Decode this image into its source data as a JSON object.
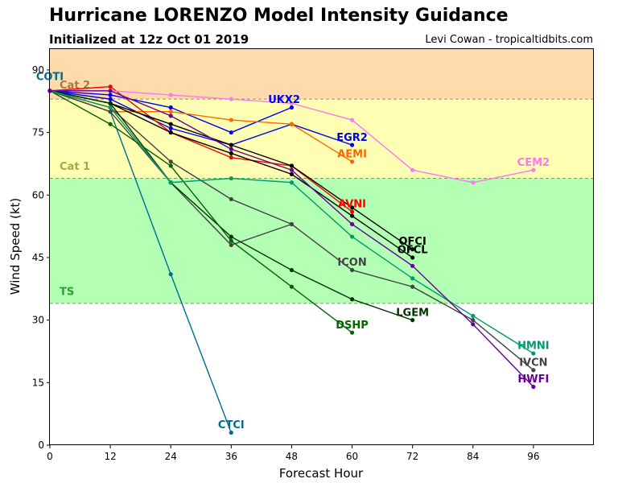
{
  "header": {
    "title": "Hurricane LORENZO Model Intensity Guidance",
    "subtitle": "Initialized at 12z Oct 01 2019",
    "credit": "Levi Cowan - tropicaltidbits.com"
  },
  "chart_data": {
    "type": "line",
    "xlabel": "Forecast Hour",
    "ylabel": "Wind Speed (kt)",
    "xlim": [
      0,
      108
    ],
    "ylim": [
      0,
      95
    ],
    "xticks": [
      0,
      12,
      24,
      36,
      48,
      60,
      72,
      84,
      96
    ],
    "yticks": [
      0,
      15,
      30,
      45,
      60,
      75,
      90
    ],
    "grid": false,
    "legend": "none",
    "bands": [
      {
        "name": "TS",
        "from": 34,
        "to": 64,
        "color": "#b3ffb3",
        "label_color": "#2ca02c",
        "label_y": 37
      },
      {
        "name": "Cat 1",
        "from": 64,
        "to": 83,
        "color": "#ffffb3",
        "label_color": "#a6a64d",
        "label_y": 67
      },
      {
        "name": "Cat 2",
        "from": 83,
        "to": 95,
        "color": "#ffdaaa",
        "label_color": "#a67a3d",
        "label_y": 86.5
      }
    ],
    "series": [
      {
        "name": "CTCI",
        "color": "#006d8f",
        "x": [
          0,
          12,
          24,
          36
        ],
        "y": [
          85,
          80,
          41,
          3
        ],
        "label_x": 36,
        "label_y": 5
      },
      {
        "name": "COTI",
        "color": "#006d8f",
        "x": [
          0
        ],
        "y": [
          85
        ],
        "label_x": 0,
        "label_y": 88.5
      },
      {
        "name": "UKX2",
        "color": "#0000ee",
        "x": [
          0,
          12,
          24,
          36,
          48
        ],
        "y": [
          85,
          84,
          81,
          75,
          81
        ],
        "label_x": 46.5,
        "label_y": 83
      },
      {
        "name": "EGR2",
        "color": "#0000ee",
        "x": [
          0,
          12,
          24,
          36,
          48,
          60
        ],
        "y": [
          85,
          83,
          76,
          72,
          77,
          72
        ],
        "label_x": 60,
        "label_y": 74
      },
      {
        "name": "AEMI",
        "color": "#ff6600",
        "x": [
          0,
          12,
          24,
          36,
          48,
          60
        ],
        "y": [
          85,
          80,
          80,
          78,
          77,
          68
        ],
        "label_x": 60,
        "label_y": 70
      },
      {
        "name": "AVNI",
        "color": "#ff0000",
        "x": [
          0,
          12,
          24,
          36,
          48,
          60
        ],
        "y": [
          85,
          86,
          75,
          69,
          67,
          56
        ],
        "label_x": 60,
        "label_y": 58
      },
      {
        "name": "CEM2",
        "color": "#ff77ee",
        "x": [
          0,
          12,
          24,
          36,
          48,
          60,
          72,
          84,
          96
        ],
        "y": [
          85,
          85,
          84,
          83,
          82,
          78,
          66,
          63,
          66
        ],
        "label_x": 96,
        "label_y": 68
      },
      {
        "name": "OFCI",
        "color": "#000000",
        "x": [
          0,
          12,
          24,
          36,
          48,
          60,
          72
        ],
        "y": [
          85,
          82,
          77,
          72,
          67,
          57,
          47
        ],
        "label_x": 72,
        "label_y": 49
      },
      {
        "name": "OFCL",
        "color": "#000000",
        "x": [
          0,
          12,
          24,
          36,
          48,
          60,
          72
        ],
        "y": [
          85,
          82,
          75,
          70,
          65,
          55,
          45
        ],
        "label_x": 72,
        "label_y": 47
      },
      {
        "name": "ICON",
        "color": "#444444",
        "x": [
          0,
          12,
          24,
          36,
          48,
          60,
          72,
          84,
          96
        ],
        "y": [
          85,
          81,
          68,
          59,
          53,
          42,
          38,
          30,
          18
        ],
        "label_x": 60,
        "label_y": 44
      },
      {
        "name": "IVCN",
        "color": "#444444",
        "x": [
          0,
          12,
          24,
          36,
          48
        ],
        "y": [
          85,
          80,
          63,
          48,
          53
        ],
        "label_x": 96,
        "label_y": 20
      },
      {
        "name": "LGEM",
        "color": "#003300",
        "x": [
          0,
          12,
          24,
          36,
          48,
          60,
          72
        ],
        "y": [
          85,
          82,
          63,
          50,
          42,
          35,
          30
        ],
        "label_x": 72,
        "label_y": 32
      },
      {
        "name": "DSHP",
        "color": "#006600",
        "x": [
          0,
          12,
          24,
          36,
          48,
          60
        ],
        "y": [
          85,
          77,
          67,
          49,
          38,
          27
        ],
        "label_x": 60,
        "label_y": 29
      },
      {
        "name": "HMNI",
        "color": "#00996b",
        "x": [
          0,
          12,
          24,
          36,
          48,
          60,
          72,
          84,
          96
        ],
        "y": [
          85,
          81,
          63,
          64,
          63,
          50,
          40,
          31,
          22
        ],
        "label_x": 96,
        "label_y": 24
      },
      {
        "name": "HWFI",
        "color": "#660099",
        "x": [
          0,
          12,
          24,
          36,
          48,
          60,
          72,
          84,
          96
        ],
        "y": [
          85,
          85,
          79,
          71,
          66,
          53,
          43,
          29,
          14
        ],
        "label_x": 96,
        "label_y": 16
      }
    ]
  }
}
